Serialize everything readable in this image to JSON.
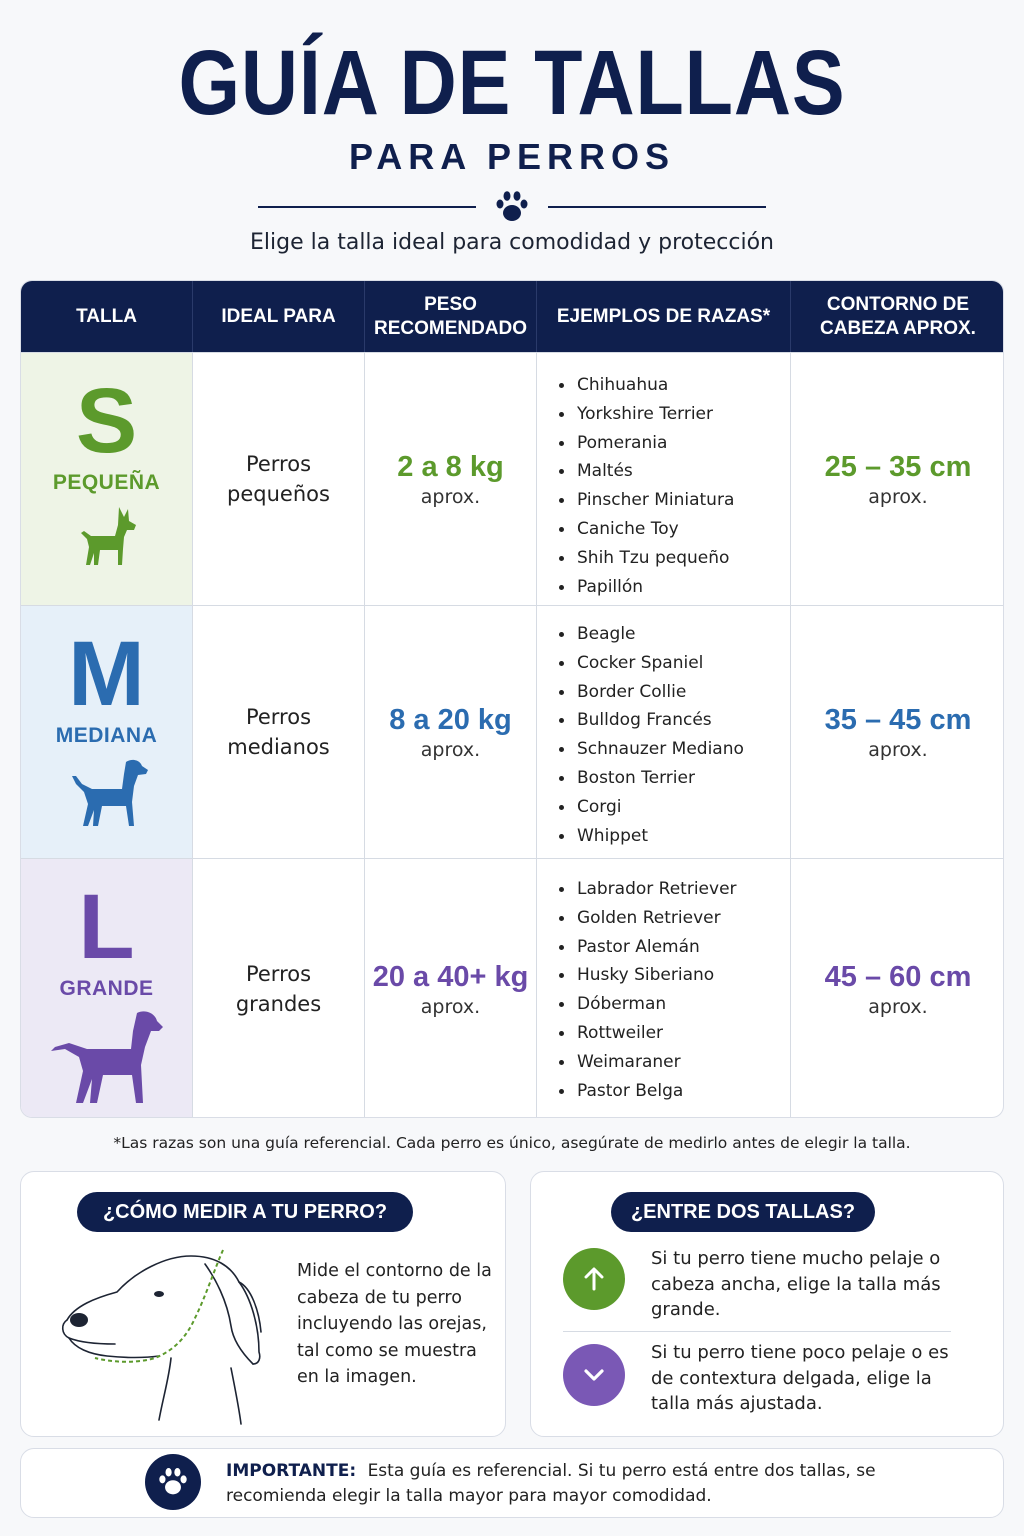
{
  "header": {
    "title": "GUÍA DE TALLAS",
    "subtitle": "PARA PERROS",
    "tagline": "Elige la talla ideal para comodidad y protección"
  },
  "table": {
    "headers": [
      "TALLA",
      "IDEAL PARA",
      "PESO\nRECOMENDADO",
      "EJEMPLOS DE RAZAS*",
      "CONTORNO DE\nCABEZA APROX."
    ],
    "rows": [
      {
        "letter": "S",
        "name": "PEQUEÑA",
        "ideal": "Perros\npequeños",
        "weight": "2 a 8 kg",
        "weight_note": "aprox.",
        "head": "25 – 35 cm",
        "head_note": "aprox.",
        "breeds": [
          "Chihuahua",
          "Yorkshire Terrier",
          "Pomerania",
          "Maltés",
          "Pinscher Miniatura",
          "Caniche Toy",
          "Shih Tzu pequeño",
          "Papillón"
        ],
        "color": "#5c9a2c",
        "bg": "#eef4e6"
      },
      {
        "letter": "M",
        "name": "MEDIANA",
        "ideal": "Perros\nmedianos",
        "weight": "8 a 20 kg",
        "weight_note": "aprox.",
        "head": "35 – 45 cm",
        "head_note": "aprox.",
        "breeds": [
          "Beagle",
          "Cocker Spaniel",
          "Border Collie",
          "Bulldog Francés",
          "Schnauzer Mediano",
          "Boston Terrier",
          "Corgi",
          "Whippet"
        ],
        "color": "#2b6cb0",
        "bg": "#e6f0f9"
      },
      {
        "letter": "L",
        "name": "GRANDE",
        "ideal": "Perros\ngrandes",
        "weight": "20 a 40+ kg",
        "weight_note": "aprox.",
        "head": "45 – 60 cm",
        "head_note": "aprox.",
        "breeds": [
          "Labrador Retriever",
          "Golden Retriever",
          "Pastor Alemán",
          "Husky Siberiano",
          "Dóberman",
          "Rottweiler",
          "Weimaraner",
          "Pastor Belga"
        ],
        "color": "#6a4aa8",
        "bg": "#ece9f5"
      }
    ]
  },
  "note": "*Las razas son una guía referencial. Cada perro es único, asegúrate de medirlo antes de elegir la talla.",
  "measure": {
    "title": "¿CÓMO MEDIR A TU PERRO?",
    "text": "Mide el contorno de la cabeza de tu perro incluyendo las orejas, tal como se muestra en la imagen."
  },
  "between": {
    "title": "¿ENTRE DOS TALLAS?",
    "tip_up": "Si tu perro tiene mucho pelaje o cabeza ancha, elige la talla más grande.",
    "tip_down": "Si tu perro tiene poco pelaje o es de contextura delgada, elige la talla más ajustada.",
    "up_color": "#5c9a2c",
    "down_color": "#7a58b5"
  },
  "important": {
    "label": "IMPORTANTE:",
    "text": "Esta guía es referencial. Si tu perro está entre dos tallas, se recomienda elegir la talla mayor para mayor comodidad."
  },
  "icons": {
    "paw": "paw-icon",
    "small_dog": "small-dog-icon",
    "medium_dog": "medium-dog-icon",
    "large_dog": "large-dog-icon",
    "arrow_up": "arrow-up-icon",
    "chevron_down": "chevron-down-icon",
    "dog_head": "dog-head-illustration"
  }
}
